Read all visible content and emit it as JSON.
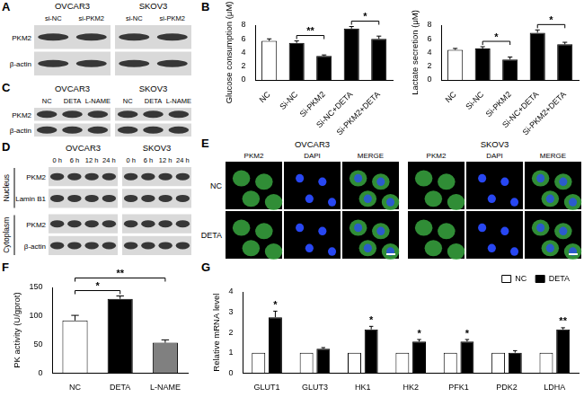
{
  "panel_labels": [
    "A",
    "B",
    "C",
    "D",
    "E",
    "F",
    "G"
  ],
  "blots": [
    {
      "groups": [
        {
          "name": "OVCAR3",
          "lanes": [
            "si-NC",
            "si-PKM2"
          ]
        },
        {
          "name": "SKOV3",
          "lanes": [
            "si-NC",
            "si-PKM2"
          ]
        }
      ],
      "rows": [
        "PKM2",
        "β-actin"
      ]
    },
    {
      "groups": [
        {
          "name": "OVCAR3",
          "lanes": [
            "NC",
            "DETA",
            "L-NAME"
          ]
        },
        {
          "name": "SKOV3",
          "lanes": [
            "NC",
            "DETA",
            "L-NAME"
          ]
        }
      ],
      "rows": [
        "PKM2",
        "β-actin"
      ]
    },
    {
      "groups": [
        {
          "name": "OVCAR3",
          "lanes": [
            "0 h",
            "6 h",
            "12 h",
            "24 h"
          ]
        },
        {
          "name": "SKOV3",
          "lanes": [
            "0 h",
            "6 h",
            "12 h",
            "24 h"
          ]
        }
      ],
      "sections": [
        {
          "name": "Nucleus",
          "rows": [
            "PKM2",
            "Lamin B1"
          ]
        },
        {
          "name": "Cytoplasm",
          "rows": [
            "PKM2",
            "β-actin"
          ]
        }
      ]
    }
  ],
  "images": {
    "groups": [
      {
        "name": "OVCAR3",
        "columns": [
          "PKM2",
          "DAPI",
          "MERGE"
        ]
      },
      {
        "name": "SKOV3",
        "columns": [
          "PKM2",
          "DAPI",
          "MERGE"
        ]
      }
    ],
    "rows": [
      "NC",
      "DETA"
    ]
  },
  "chart_data": [
    {
      "type": "bar",
      "y_label": "Glucose consumption (μM)",
      "categories": [
        "NC",
        "Si-NC",
        "Si-PKM2",
        "Si-NC+DETA",
        "Si-PKM2+DETA"
      ],
      "values": [
        5.7,
        5.4,
        3.5,
        7.5,
        6.0
      ],
      "errors": [
        0.3,
        0.3,
        0.15,
        0.3,
        0.4
      ],
      "colors": [
        "#ffffff",
        "#000000",
        "#000000",
        "#000000",
        "#000000"
      ],
      "ylim": [
        0,
        8
      ],
      "yticks": [
        0,
        2,
        4,
        6,
        8
      ],
      "grid": false,
      "significance": [
        {
          "from": "Si-NC",
          "to": "Si-PKM2",
          "label": "**"
        },
        {
          "from": "Si-NC+DETA",
          "to": "Si-PKM2+DETA",
          "label": "*"
        }
      ]
    },
    {
      "type": "bar",
      "y_label": "Lactate secretion (μM)",
      "categories": [
        "NC",
        "Si-NC",
        "Si-PKM2",
        "Si-NC+DETA",
        "Si-PKM2+DETA"
      ],
      "values": [
        4.4,
        4.6,
        3.0,
        6.9,
        5.2
      ],
      "errors": [
        0.2,
        0.25,
        0.35,
        0.4,
        0.3
      ],
      "colors": [
        "#ffffff",
        "#000000",
        "#000000",
        "#000000",
        "#000000"
      ],
      "ylim": [
        0,
        8
      ],
      "yticks": [
        0,
        2,
        4,
        6,
        8
      ],
      "grid": false,
      "significance": [
        {
          "from": "Si-NC",
          "to": "Si-PKM2",
          "label": "*"
        },
        {
          "from": "Si-NC+DETA",
          "to": "Si-PKM2+DETA",
          "label": "*"
        }
      ]
    },
    {
      "type": "bar",
      "y_label": "PK activity (U/gprot)",
      "categories": [
        "NC",
        "DETA",
        "L-NAME"
      ],
      "values": [
        92,
        130,
        53
      ],
      "errors": [
        9,
        5,
        5
      ],
      "colors": [
        "#ffffff",
        "#000000",
        "#808080"
      ],
      "ylim": [
        0,
        150
      ],
      "yticks": [
        0,
        50,
        100,
        150
      ],
      "grid": false,
      "significance": [
        {
          "from": "NC",
          "to": "DETA",
          "label": "*"
        },
        {
          "from": "NC",
          "to": "L-NAME",
          "label": "**"
        }
      ]
    },
    {
      "type": "bar",
      "y_label": "Relative mRNA level",
      "categories": [
        "GLUT1",
        "GLUT3",
        "HK1",
        "HK2",
        "PFK1",
        "PDK2",
        "LDHA"
      ],
      "series": [
        {
          "name": "NC",
          "color": "#ffffff",
          "values": [
            1,
            1,
            1,
            1,
            1,
            1,
            1
          ],
          "errors": [
            0,
            0,
            0,
            0,
            0,
            0,
            0
          ]
        },
        {
          "name": "DETA",
          "color": "#000000",
          "values": [
            2.75,
            1.2,
            2.15,
            1.55,
            1.55,
            1.0,
            2.15
          ],
          "errors": [
            0.3,
            0.05,
            0.15,
            0.1,
            0.1,
            0.1,
            0.08
          ],
          "significance": [
            {
              "category": "GLUT1",
              "label": "*"
            },
            {
              "category": "HK1",
              "label": "*"
            },
            {
              "category": "HK2",
              "label": "*"
            },
            {
              "category": "PFK1",
              "label": "*"
            },
            {
              "category": "LDHA",
              "label": "**"
            }
          ]
        }
      ],
      "ylim": [
        0,
        4
      ],
      "yticks": [
        0,
        1,
        2,
        3,
        4
      ],
      "grid": false,
      "legend": "top-right"
    }
  ]
}
